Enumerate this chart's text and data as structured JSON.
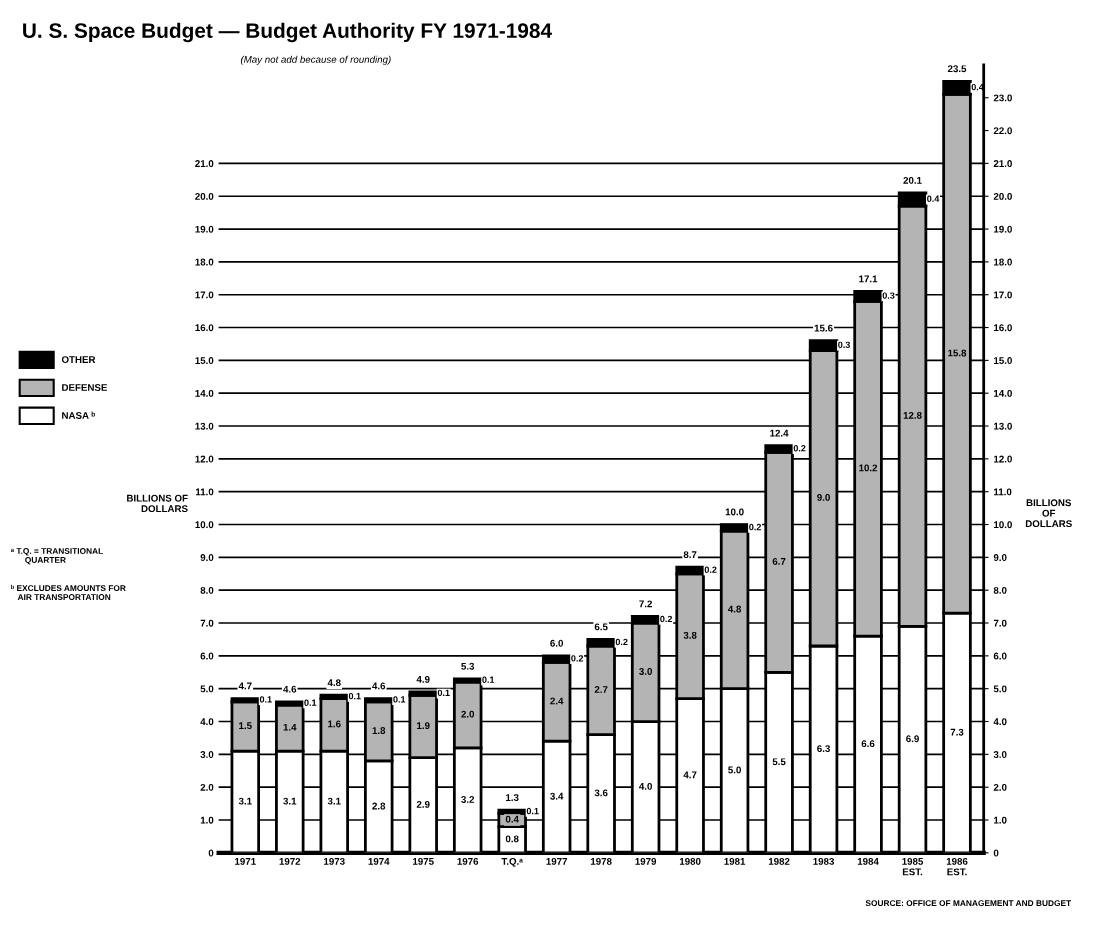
{
  "chart_data": {
    "type": "bar",
    "title": "U. S. Space Budget — Budget Authority FY 1971-1984",
    "subtitle": "(May not add because of rounding)",
    "ylabel": "BILLIONS OF\nDOLLARS",
    "y2label": "BILLIONS\nOF\nDOLLARS",
    "categories": [
      "1971",
      "1972",
      "1973",
      "1974",
      "1975",
      "1976",
      "T.Q.ᵃ",
      "1977",
      "1978",
      "1979",
      "1980",
      "1981",
      "1982",
      "1983",
      "1984",
      "1985\nEST.",
      "1986\nEST."
    ],
    "stacked": true,
    "series": [
      {
        "name": "NASA ᵇ",
        "color": "#ffffff",
        "values": [
          3.1,
          3.1,
          3.1,
          2.8,
          2.9,
          3.2,
          0.8,
          3.4,
          3.6,
          4.0,
          4.7,
          5.0,
          5.5,
          6.3,
          6.6,
          6.9,
          7.3
        ],
        "value_labels": [
          "3.1",
          "3.1",
          "3.1",
          "2.8",
          "2.9",
          "3.2",
          "0.8",
          "3.4",
          "3.6",
          "4.0",
          "4.7",
          "5.0",
          "5.5",
          "6.3",
          "6.6",
          "6.9",
          "7.3"
        ]
      },
      {
        "name": "DEFENSE",
        "color": "#b4b4b4",
        "values": [
          1.5,
          1.4,
          1.6,
          1.8,
          1.9,
          2.0,
          0.4,
          2.4,
          2.7,
          3.0,
          3.8,
          4.8,
          6.7,
          9.0,
          10.2,
          12.8,
          15.8
        ],
        "value_labels": [
          "1.5",
          "1.4",
          "1.6",
          "1.8",
          "1.9",
          "2.0",
          "0.4",
          "2.4",
          "2.7",
          "3.0",
          "3.8",
          "4.8",
          "6.7",
          "9.0",
          "10.2",
          "12.8",
          "15.8"
        ]
      },
      {
        "name": "OTHER",
        "color": "#000000",
        "values": [
          0.1,
          0.1,
          0.1,
          0.1,
          0.1,
          0.1,
          0.1,
          0.2,
          0.2,
          0.2,
          0.2,
          0.2,
          0.2,
          0.3,
          0.3,
          0.4,
          0.4
        ],
        "value_labels": [
          "0.1",
          "0.1",
          "0.1",
          "0.1",
          "0.1",
          "0.1",
          "0.1",
          "0.2",
          "0.2",
          "0.2",
          "0.2",
          "0.2",
          "0.2",
          "0.3",
          "0.3",
          "0.4",
          "0.4"
        ]
      }
    ],
    "totals": [
      "4.7",
      "4.6",
      "4.8",
      "4.6",
      "4.9",
      "5.3",
      "1.3",
      "6.0",
      "6.5",
      "7.2",
      "8.7",
      "10.0",
      "12.4",
      "15.6",
      "17.1",
      "20.1",
      "23.5"
    ],
    "ylim": [
      0,
      24
    ],
    "yticks": [
      {
        "value": 0,
        "label": "0"
      },
      {
        "value": 1,
        "label": "1.0"
      },
      {
        "value": 2,
        "label": "2.0"
      },
      {
        "value": 3,
        "label": "3.0"
      },
      {
        "value": 4,
        "label": "4.0"
      },
      {
        "value": 5,
        "label": "5.0"
      },
      {
        "value": 6,
        "label": "6.0"
      },
      {
        "value": 7,
        "label": "7.0"
      },
      {
        "value": 8,
        "label": "8.0"
      },
      {
        "value": 9,
        "label": "9.0"
      },
      {
        "value": 10,
        "label": "10.0"
      },
      {
        "value": 11,
        "label": "11.0"
      },
      {
        "value": 12,
        "label": "12.0"
      },
      {
        "value": 13,
        "label": "13.0"
      },
      {
        "value": 14,
        "label": "14.0"
      },
      {
        "value": 15,
        "label": "15.0"
      },
      {
        "value": 16,
        "label": "16.0"
      },
      {
        "value": 17,
        "label": "17.0"
      },
      {
        "value": 18,
        "label": "18.0"
      },
      {
        "value": 19,
        "label": "19.0"
      },
      {
        "value": 20,
        "label": "20.0"
      },
      {
        "value": 21,
        "label": "21.0"
      }
    ],
    "y2lim": [
      0,
      24
    ],
    "y2ticks": [
      {
        "value": 0,
        "label": "0"
      },
      {
        "value": 1,
        "label": "1.0"
      },
      {
        "value": 2,
        "label": "2.0"
      },
      {
        "value": 3,
        "label": "3.0"
      },
      {
        "value": 4,
        "label": "4.0"
      },
      {
        "value": 5,
        "label": "5.0"
      },
      {
        "value": 6,
        "label": "6.0"
      },
      {
        "value": 7,
        "label": "7.0"
      },
      {
        "value": 8,
        "label": "8.0"
      },
      {
        "value": 9,
        "label": "9.0"
      },
      {
        "value": 10,
        "label": "10.0"
      },
      {
        "value": 11,
        "label": "11.0"
      },
      {
        "value": 12,
        "label": "12.0"
      },
      {
        "value": 13,
        "label": "13.0"
      },
      {
        "value": 14,
        "label": "14.0"
      },
      {
        "value": 15,
        "label": "15.0"
      },
      {
        "value": 16,
        "label": "16.0"
      },
      {
        "value": 17,
        "label": "17.0"
      },
      {
        "value": 18,
        "label": "18.0"
      },
      {
        "value": 19,
        "label": "19.0"
      },
      {
        "value": 20,
        "label": "20.0"
      },
      {
        "value": 21,
        "label": "21.0"
      },
      {
        "value": 22,
        "label": "22.0"
      },
      {
        "value": 23,
        "label": "23.0"
      }
    ],
    "grid": "y",
    "legend": "left",
    "annotations": [
      "ᵃ T.Q. = TRANSITIONAL\n      QUARTER",
      "ᵇ EXCLUDES AMOUNTS FOR\n   AIR TRANSPORTATION",
      "SOURCE: OFFICE OF MANAGEMENT AND BUDGET"
    ]
  }
}
